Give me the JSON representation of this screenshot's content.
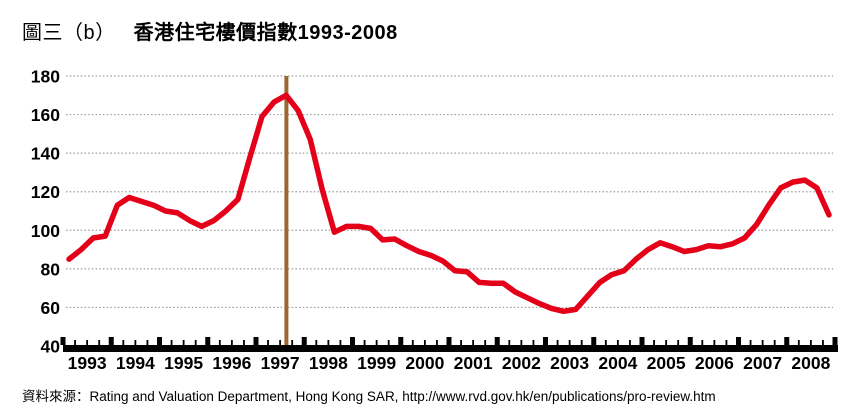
{
  "title": {
    "label": "圖三（b）",
    "main": "香港住宅樓價指數",
    "period": "1993-2008"
  },
  "source": {
    "text": "資料來源：Rating and Valuation Department, Hong Kong SAR, http://www.rvd.gov.hk/en/publications/pro-review.htm"
  },
  "colors": {
    "series_line": "#e50019",
    "event_line": "#9a6733",
    "gridline": "#9c9c9c",
    "axis": "#000000",
    "text": "#000000"
  },
  "chart_data": {
    "type": "line",
    "title": "香港住宅樓價指數1993-2008",
    "xlabel": "",
    "ylabel": "",
    "ylim": [
      40,
      180
    ],
    "y_ticks": [
      40,
      60,
      80,
      100,
      120,
      140,
      160,
      180
    ],
    "x_tick_labels": [
      "1993",
      "1994",
      "1995",
      "1996",
      "1997",
      "1998",
      "1999",
      "2000",
      "2001",
      "2002",
      "2003",
      "2004",
      "2005",
      "2006",
      "2007",
      "2008"
    ],
    "x_minor_ticks_per_year": 4,
    "grid": "horizontal-dotted",
    "legend_position": "none",
    "event_line": {
      "x_year": 1997.63,
      "description": "vertical marker at mid-1997"
    },
    "series": [
      {
        "name": "住宅樓價指數",
        "quarters": [
          "1993 Q1",
          "1993 Q2",
          "1993 Q3",
          "1993 Q4",
          "1994 Q1",
          "1994 Q2",
          "1994 Q3",
          "1994 Q4",
          "1995 Q1",
          "1995 Q2",
          "1995 Q3",
          "1995 Q4",
          "1996 Q1",
          "1996 Q2",
          "1996 Q3",
          "1996 Q4",
          "1997 Q1",
          "1997 Q2",
          "1997 Q3",
          "1997 Q4",
          "1998 Q1",
          "1998 Q2",
          "1998 Q3",
          "1998 Q4",
          "1999 Q1",
          "1999 Q2",
          "1999 Q3",
          "1999 Q4",
          "2000 Q1",
          "2000 Q2",
          "2000 Q3",
          "2000 Q4",
          "2001 Q1",
          "2001 Q2",
          "2001 Q3",
          "2001 Q4",
          "2002 Q1",
          "2002 Q2",
          "2002 Q3",
          "2002 Q4",
          "2003 Q1",
          "2003 Q2",
          "2003 Q3",
          "2003 Q4",
          "2004 Q1",
          "2004 Q2",
          "2004 Q3",
          "2004 Q4",
          "2005 Q1",
          "2005 Q2",
          "2005 Q3",
          "2005 Q4",
          "2006 Q1",
          "2006 Q2",
          "2006 Q3",
          "2006 Q4",
          "2007 Q1",
          "2007 Q2",
          "2007 Q3",
          "2007 Q4",
          "2008 Q1",
          "2008 Q2",
          "2008 Q3",
          "2008 Q4"
        ],
        "values": [
          85,
          90,
          96,
          97,
          113,
          117,
          115,
          113,
          110,
          109,
          105,
          102,
          105,
          110,
          116,
          138,
          159,
          166.5,
          170,
          162,
          147,
          121,
          99,
          102,
          102,
          101,
          95,
          95.5,
          92,
          89,
          87,
          84,
          79,
          78.5,
          73,
          72.5,
          72.5,
          68,
          65,
          62,
          59.5,
          58,
          59,
          66,
          73,
          77,
          79,
          85,
          90,
          93.5,
          91.5,
          89,
          90,
          92,
          91.5,
          93,
          96,
          103,
          113,
          122,
          125,
          126,
          122,
          108
        ]
      }
    ]
  }
}
